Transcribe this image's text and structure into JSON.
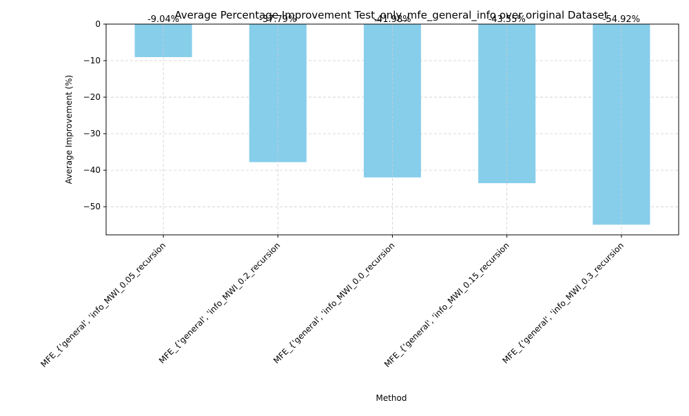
{
  "chart_data": {
    "type": "bar",
    "title": "Average Percentage Improvement Test_only_mfe_general_info over original Dataset",
    "xlabel": "Method",
    "ylabel": "Average Improvement (%)",
    "categories": [
      "MFE_{'general', 'info_MWI_0.05_recursion",
      "MFE_{'general', 'info_MWI_0.2_recursion",
      "MFE_{'general', 'info_MWI_0.0_recursion",
      "MFE_{'general', 'info_MWI_0.15_recursion",
      "MFE_{'general', 'info_MWI_0.3_recursion"
    ],
    "values": [
      -9.04,
      -37.79,
      -41.98,
      -43.55,
      -54.92
    ],
    "value_labels": [
      "-9.04%",
      "-37.79%",
      "-41.98%",
      "-43.55%",
      "-54.92%"
    ],
    "y_ticks": [
      0,
      -10,
      -20,
      -30,
      -40,
      -50
    ],
    "y_tick_labels": [
      "0",
      "−10",
      "−20",
      "−30",
      "−40",
      "−50"
    ],
    "ylim": [
      -57.7,
      0
    ],
    "grid": true,
    "bar_color": "#87ceeb",
    "grid_color": "#cccccc"
  }
}
